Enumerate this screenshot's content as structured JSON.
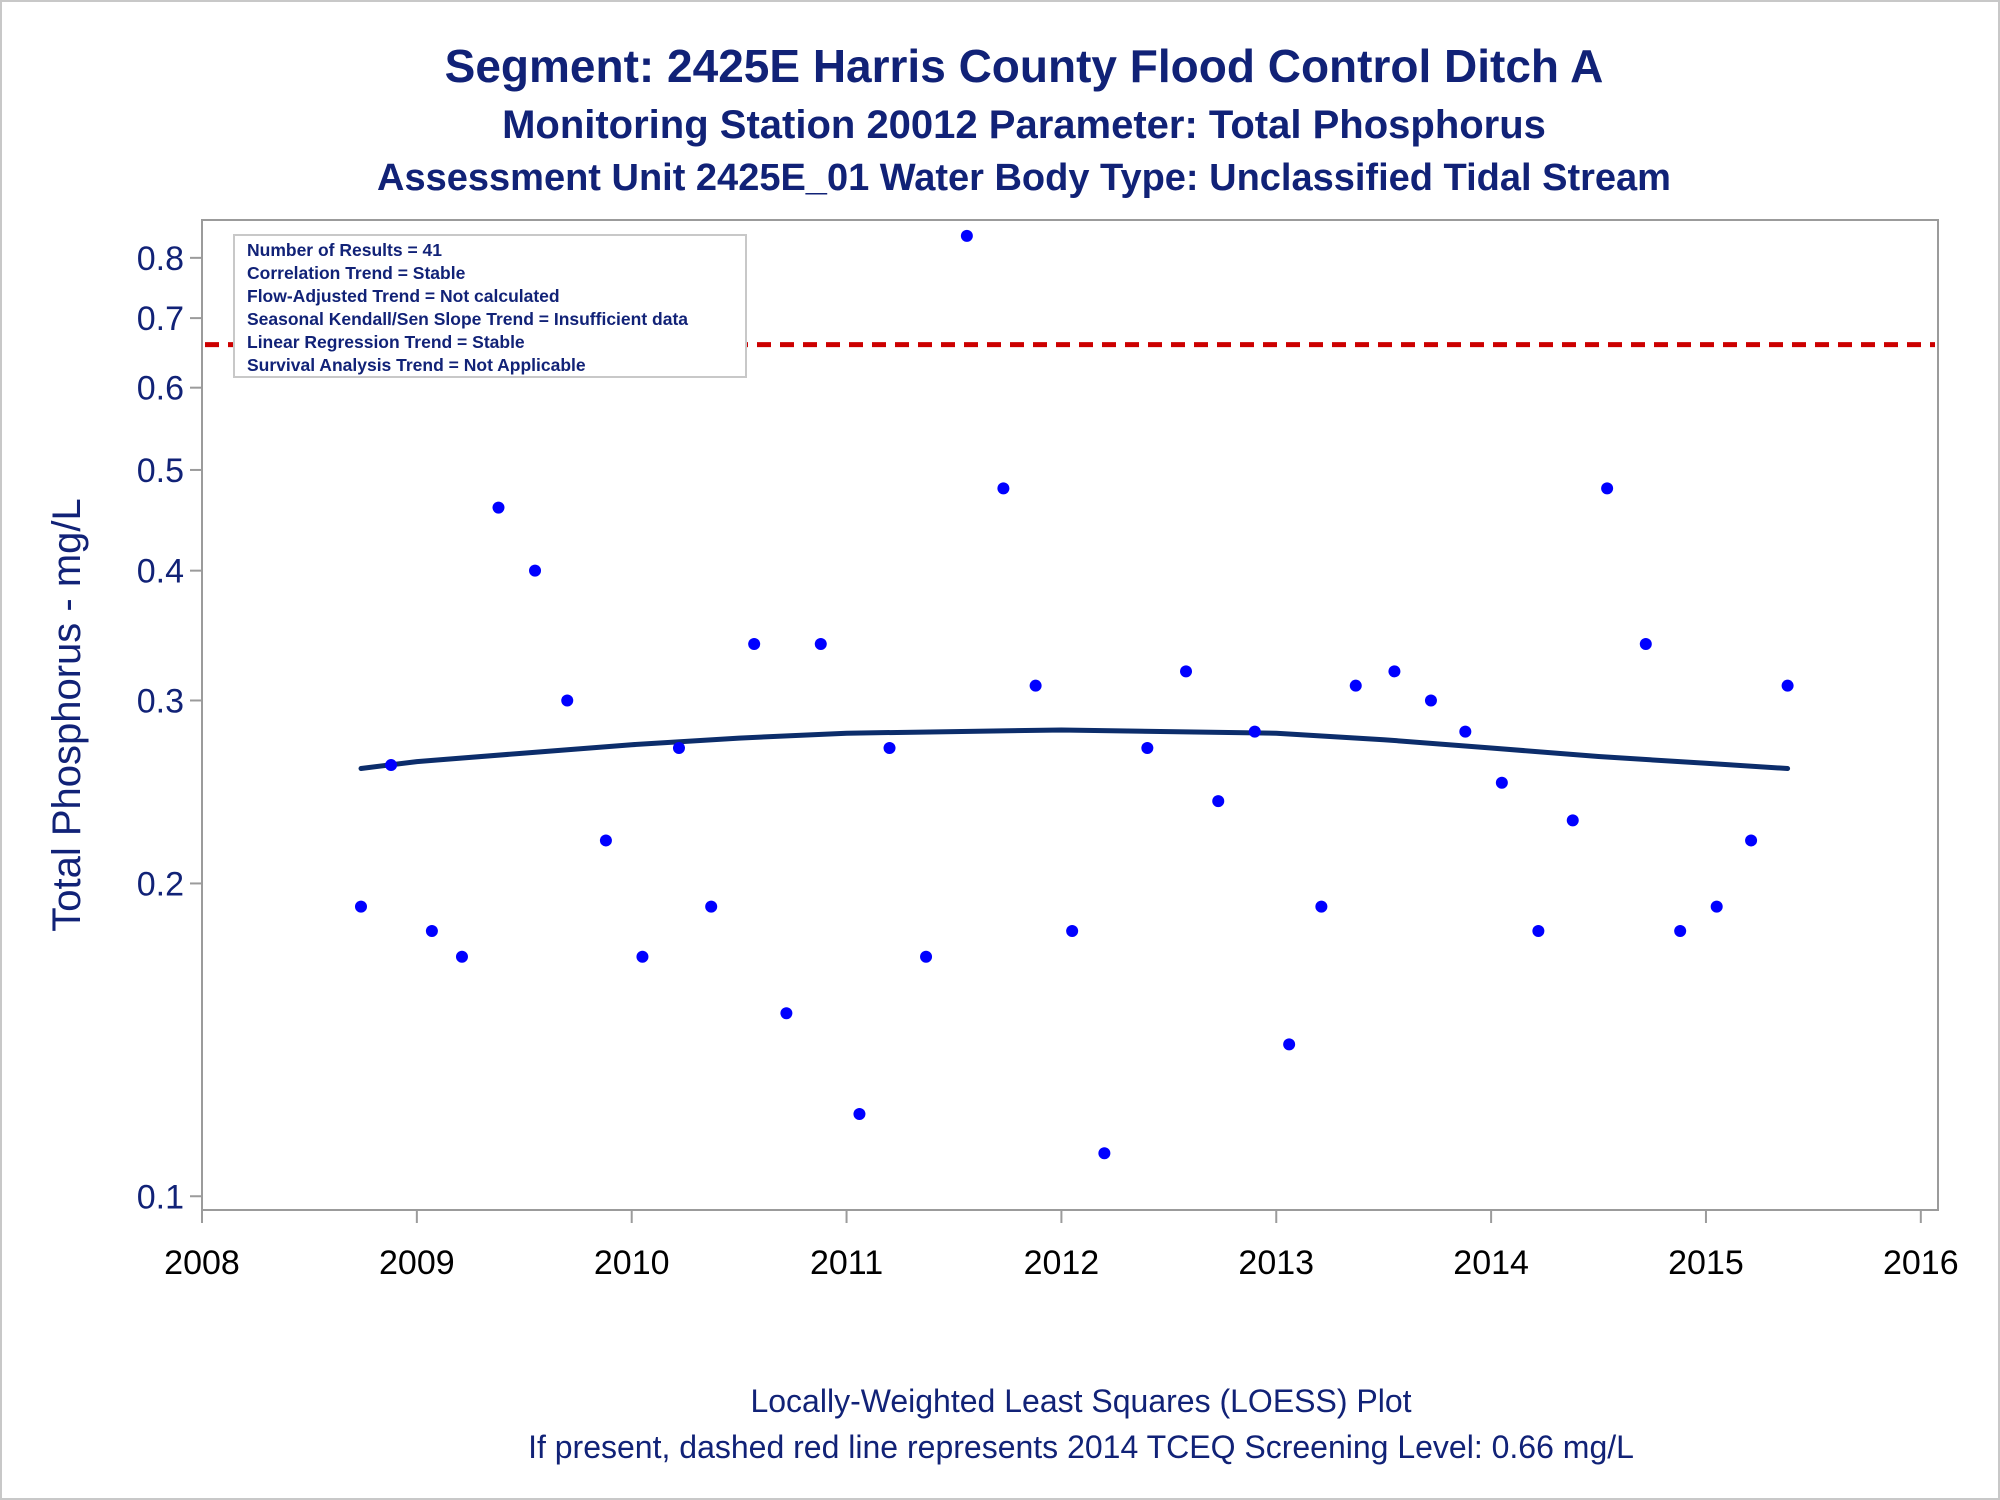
{
  "chart_data": {
    "type": "scatter",
    "title": "Segment: 2425E  Harris County Flood Control Ditch A",
    "subtitle": "Monitoring Station 20012 Parameter: Total Phosphorus",
    "subtitle2": "Assessment Unit 2425E_01   Water Body Type: Unclassified Tidal Stream",
    "xlabel": "",
    "ylabel": "Total Phosphorus - mg/L",
    "x_ticks": [
      "2008",
      "2009",
      "2010",
      "2011",
      "2012",
      "2013",
      "2014",
      "2015",
      "2016"
    ],
    "x_range": [
      2008,
      2016.08
    ],
    "y_ticks": [
      "0.1",
      "0.2",
      "0.3",
      "0.4",
      "0.5",
      "0.6",
      "0.7",
      "0.8"
    ],
    "y_scale": "log",
    "y_range": [
      0.097,
      0.87
    ],
    "grid": false,
    "legend_position": "top-left",
    "inset_lines": [
      "Number of Results = 41",
      "Correlation Trend = Stable",
      "Flow-Adjusted Trend = Not calculated",
      "Seasonal Kendall/Sen Slope Trend = Insufficient data",
      "Linear Regression Trend = Stable",
      "Survival Analysis Trend = Not Applicable"
    ],
    "screening_level": 0.66,
    "colors": {
      "points": "#0000ff",
      "loess": "#0c2d6b",
      "screening": "#cc0000",
      "text": "#112277"
    },
    "points": [
      {
        "x": 2008.74,
        "y": 0.19
      },
      {
        "x": 2008.88,
        "y": 0.26
      },
      {
        "x": 2009.07,
        "y": 0.18
      },
      {
        "x": 2009.21,
        "y": 0.17
      },
      {
        "x": 2009.38,
        "y": 0.46
      },
      {
        "x": 2009.55,
        "y": 0.4
      },
      {
        "x": 2009.7,
        "y": 0.3
      },
      {
        "x": 2009.88,
        "y": 0.22
      },
      {
        "x": 2010.05,
        "y": 0.17
      },
      {
        "x": 2010.22,
        "y": 0.27
      },
      {
        "x": 2010.37,
        "y": 0.19
      },
      {
        "x": 2010.57,
        "y": 0.34
      },
      {
        "x": 2010.72,
        "y": 0.15
      },
      {
        "x": 2010.88,
        "y": 0.34
      },
      {
        "x": 2011.06,
        "y": 0.12
      },
      {
        "x": 2011.2,
        "y": 0.27
      },
      {
        "x": 2011.37,
        "y": 0.17
      },
      {
        "x": 2011.56,
        "y": 0.84
      },
      {
        "x": 2011.73,
        "y": 0.48
      },
      {
        "x": 2011.88,
        "y": 0.31
      },
      {
        "x": 2012.05,
        "y": 0.18
      },
      {
        "x": 2012.2,
        "y": 0.11
      },
      {
        "x": 2012.4,
        "y": 0.27
      },
      {
        "x": 2012.58,
        "y": 0.32
      },
      {
        "x": 2012.73,
        "y": 0.24
      },
      {
        "x": 2012.9,
        "y": 0.28
      },
      {
        "x": 2013.06,
        "y": 0.14
      },
      {
        "x": 2013.21,
        "y": 0.19
      },
      {
        "x": 2013.37,
        "y": 0.31
      },
      {
        "x": 2013.55,
        "y": 0.32
      },
      {
        "x": 2013.72,
        "y": 0.3
      },
      {
        "x": 2013.88,
        "y": 0.28
      },
      {
        "x": 2014.05,
        "y": 0.25
      },
      {
        "x": 2014.22,
        "y": 0.18
      },
      {
        "x": 2014.38,
        "y": 0.23
      },
      {
        "x": 2014.54,
        "y": 0.48
      },
      {
        "x": 2014.72,
        "y": 0.34
      },
      {
        "x": 2014.88,
        "y": 0.18
      },
      {
        "x": 2015.05,
        "y": 0.19
      },
      {
        "x": 2015.21,
        "y": 0.22
      },
      {
        "x": 2015.38,
        "y": 0.31
      }
    ],
    "loess": [
      {
        "x": 2008.74,
        "y": 0.258
      },
      {
        "x": 2009.0,
        "y": 0.262
      },
      {
        "x": 2009.5,
        "y": 0.267
      },
      {
        "x": 2010.0,
        "y": 0.272
      },
      {
        "x": 2010.5,
        "y": 0.276
      },
      {
        "x": 2011.0,
        "y": 0.279
      },
      {
        "x": 2011.5,
        "y": 0.28
      },
      {
        "x": 2012.0,
        "y": 0.281
      },
      {
        "x": 2012.5,
        "y": 0.28
      },
      {
        "x": 2013.0,
        "y": 0.279
      },
      {
        "x": 2013.5,
        "y": 0.275
      },
      {
        "x": 2014.0,
        "y": 0.27
      },
      {
        "x": 2014.5,
        "y": 0.265
      },
      {
        "x": 2015.0,
        "y": 0.261
      },
      {
        "x": 2015.38,
        "y": 0.258
      }
    ]
  },
  "footer": {
    "line1": "Locally-Weighted Least Squares (LOESS) Plot",
    "line2": "If present, dashed red line represents 2014 TCEQ Screening Level: 0.66 mg/L"
  }
}
